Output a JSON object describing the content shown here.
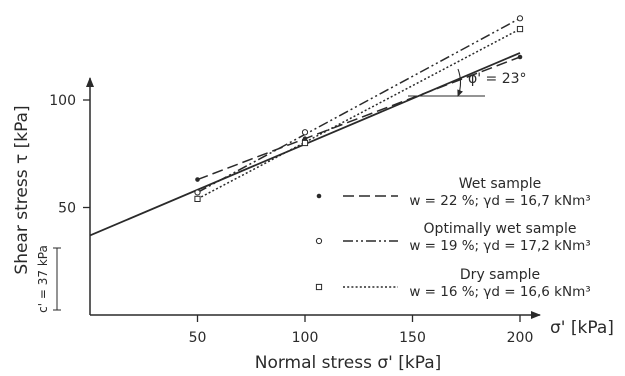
{
  "chart_data": {
    "type": "line",
    "xlabel": "Normal stress σ' [kPa]",
    "ylabel": "Shear stress τ [kPa]",
    "x_axis_end_label": "σ' [kPa]",
    "xlim": [
      0,
      225
    ],
    "ylim": [
      0,
      130
    ],
    "x_ticks": [
      50,
      100,
      150,
      200
    ],
    "y_ticks": [
      50,
      100
    ],
    "grid": false,
    "legend_position": "right",
    "series": [
      {
        "name": "Wet sample",
        "formula": "w = 22 %; γd = 16,7 kNm³",
        "marker": "dot",
        "dash": "long-dash",
        "x": [
          50,
          100,
          200
        ],
        "y": [
          63,
          82,
          120
        ]
      },
      {
        "name": "Optimally wet sample",
        "formula": "w = 19 %; γd = 17,2 kNm³",
        "marker": "circle",
        "dash": "dash-dot-dot",
        "x": [
          50,
          100,
          200
        ],
        "y": [
          57,
          85,
          138
        ]
      },
      {
        "name": "Dry sample",
        "formula": "w = 16 %; γd = 16,6 kNm³",
        "marker": "square",
        "dash": "dotted",
        "x": [
          50,
          100,
          200
        ],
        "y": [
          54,
          80,
          133
        ]
      }
    ],
    "fit_line": {
      "intercept": 37,
      "slope": 0.4245,
      "x_range": [
        0,
        200
      ]
    },
    "annotations": {
      "friction_angle": "φ' = 23°",
      "cohesion": "c' = 37 kPa"
    },
    "colors": {
      "line": "#2a2a2a",
      "background": "#ffffff"
    }
  }
}
